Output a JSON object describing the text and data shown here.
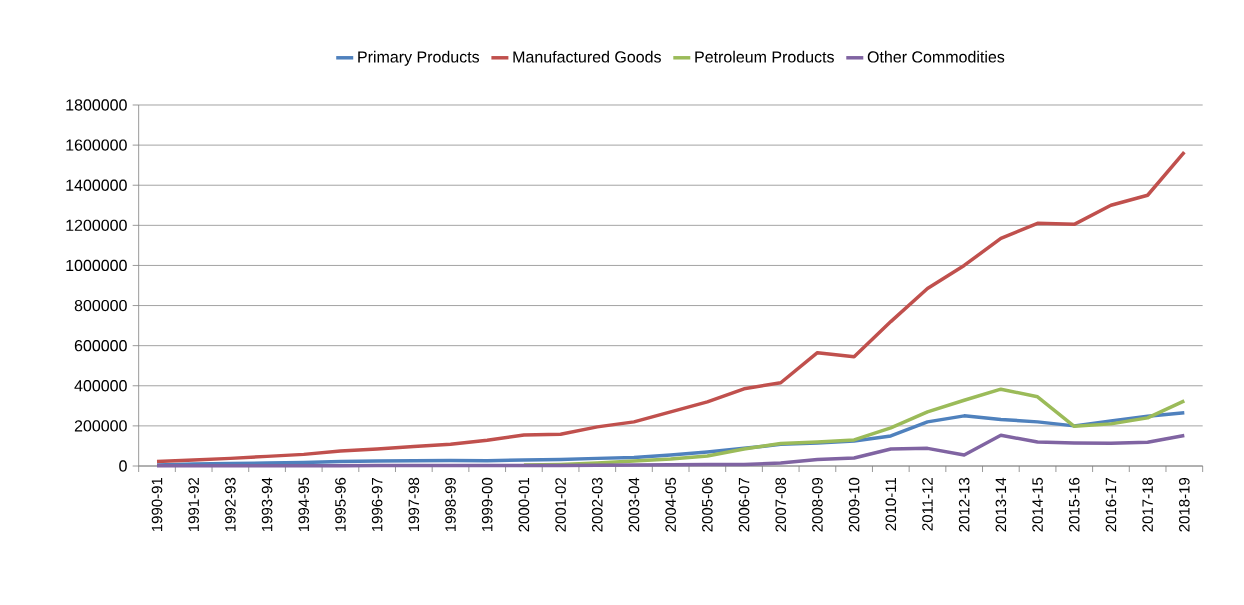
{
  "chart_data": {
    "type": "line",
    "categories": [
      "1990-91",
      "1991-92",
      "1992-93",
      "1993-94",
      "1994-95",
      "1995-96",
      "1996-97",
      "1997-98",
      "1998-99",
      "1999-00",
      "2000-01",
      "2001-02",
      "2002-03",
      "2003-04",
      "2004-05",
      "2005-06",
      "2006-07",
      "2007-08",
      "2008-09",
      "2009-10",
      "2010-11",
      "2011-12",
      "2012-13",
      "2013-14",
      "2014-15",
      "2015-16",
      "2016-17",
      "2017-18",
      "2018-19"
    ],
    "series": [
      {
        "name": "Primary Products",
        "color": "#4f81bd",
        "values": [
          5000,
          10000,
          12000,
          15000,
          18000,
          22000,
          25000,
          26000,
          27000,
          26000,
          30000,
          32000,
          38000,
          42000,
          55000,
          70000,
          88000,
          108000,
          115000,
          125000,
          150000,
          220000,
          250000,
          232000,
          220000,
          200000,
          225000,
          248000,
          265000
        ]
      },
      {
        "name": "Manufactured Goods",
        "color": "#c0504d",
        "values": [
          22000,
          30000,
          38000,
          48000,
          58000,
          75000,
          85000,
          97000,
          108000,
          128000,
          155000,
          158000,
          195000,
          220000,
          270000,
          320000,
          385000,
          415000,
          565000,
          545000,
          720000,
          885000,
          1000000,
          1135000,
          1210000,
          1205000,
          1300000,
          1350000,
          1565000
        ]
      },
      {
        "name": "Petroleum Products",
        "color": "#9bbb59",
        "values": [
          null,
          null,
          null,
          null,
          null,
          null,
          null,
          null,
          null,
          null,
          5000,
          8000,
          15000,
          25000,
          35000,
          50000,
          85000,
          112000,
          120000,
          130000,
          190000,
          270000,
          328000,
          383000,
          345000,
          198000,
          210000,
          240000,
          325000
        ]
      },
      {
        "name": "Other Commodities",
        "color": "#8064a2",
        "values": [
          1000,
          1000,
          1000,
          1000,
          1000,
          1000,
          2000,
          2000,
          2000,
          2000,
          3000,
          3000,
          4000,
          5000,
          6000,
          7000,
          8000,
          15000,
          32000,
          40000,
          85000,
          88000,
          55000,
          153000,
          120000,
          115000,
          113000,
          118000,
          152000
        ]
      }
    ],
    "ylim": [
      0,
      1800000
    ],
    "yticks": [
      0,
      200000,
      400000,
      600000,
      800000,
      1000000,
      1200000,
      1400000,
      1600000,
      1800000
    ],
    "grid": "y",
    "legend": "top",
    "marker": "none",
    "line_style": "solid"
  }
}
